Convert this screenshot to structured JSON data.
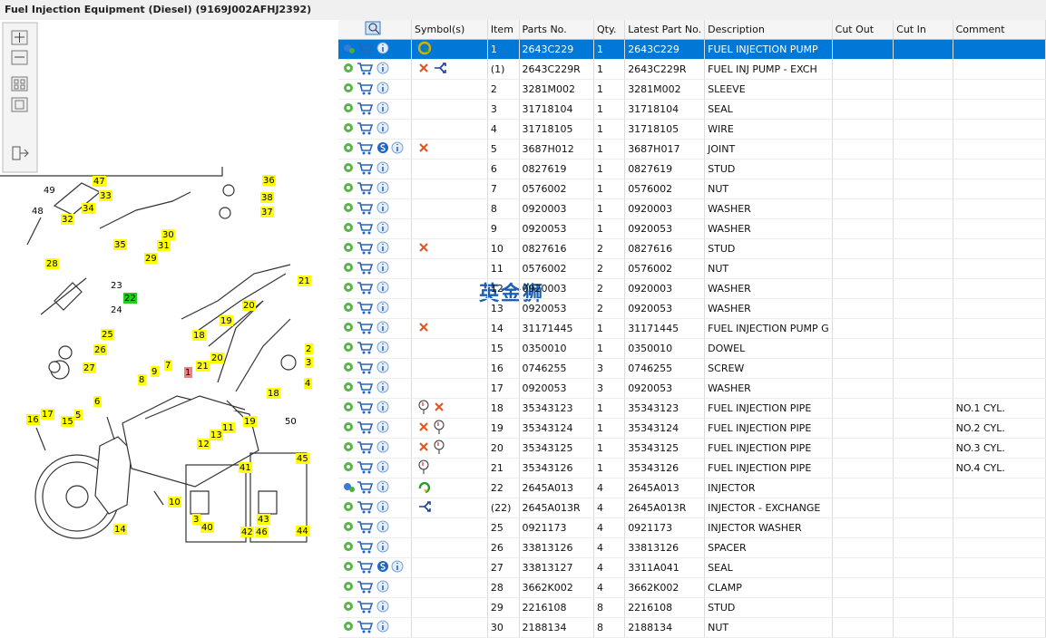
{
  "header": {
    "title": "Fuel Injection Equipment (Diesel) (9169J002AFHJ2392)"
  },
  "watermark": "英金狮",
  "diagram": {
    "callouts": [
      "47",
      "49",
      "33",
      "34",
      "32",
      "48",
      "36",
      "38",
      "37",
      "35",
      "30",
      "31",
      "28",
      "29",
      "23",
      "22",
      "24",
      "21",
      "20",
      "19",
      "18",
      "25",
      "26",
      "27",
      "2",
      "3",
      "4",
      "9",
      "8",
      "7",
      "1",
      "21",
      "20",
      "18",
      "6",
      "16",
      "17",
      "15",
      "5",
      "19",
      "50",
      "11",
      "13",
      "12",
      "41",
      "45",
      "10",
      "3",
      "40",
      "42",
      "43",
      "46",
      "44",
      "14"
    ]
  },
  "table": {
    "columns": [
      "Symbol(s)",
      "Item",
      "Parts No.",
      "Qty.",
      "Latest Part No.",
      "Description",
      "Cut Out",
      "Cut In",
      "Comment"
    ],
    "rows": [
      {
        "item": "1",
        "part_no": "2643C229",
        "qty": 1,
        "latest": "2643C229",
        "description": "FUEL INJECTION PUMP"
      },
      {
        "item": "(1)",
        "part_no": "2643C229R",
        "qty": 1,
        "latest": "2643C229R",
        "description": "FUEL INJ PUMP - EXCH"
      },
      {
        "item": "2",
        "part_no": "3281M002",
        "qty": 1,
        "latest": "3281M002",
        "description": "SLEEVE"
      },
      {
        "item": "3",
        "part_no": "31718104",
        "qty": 1,
        "latest": "31718104",
        "description": "SEAL"
      },
      {
        "item": "4",
        "part_no": "31718105",
        "qty": 1,
        "latest": "31718105",
        "description": "WIRE"
      },
      {
        "item": "5",
        "part_no": "3687H012",
        "qty": 1,
        "latest": "3687H017",
        "description": "JOINT"
      },
      {
        "item": "6",
        "part_no": "0827619",
        "qty": 1,
        "latest": "0827619",
        "description": "STUD"
      },
      {
        "item": "7",
        "part_no": "0576002",
        "qty": 1,
        "latest": "0576002",
        "description": "NUT"
      },
      {
        "item": "8",
        "part_no": "0920003",
        "qty": 1,
        "latest": "0920003",
        "description": "WASHER"
      },
      {
        "item": "9",
        "part_no": "0920053",
        "qty": 1,
        "latest": "0920053",
        "description": "WASHER"
      },
      {
        "item": "10",
        "part_no": "0827616",
        "qty": 2,
        "latest": "0827616",
        "description": "STUD"
      },
      {
        "item": "11",
        "part_no": "0576002",
        "qty": 2,
        "latest": "0576002",
        "description": "NUT"
      },
      {
        "item": "12",
        "part_no": "0920003",
        "qty": 2,
        "latest": "0920003",
        "description": "WASHER"
      },
      {
        "item": "13",
        "part_no": "0920053",
        "qty": 2,
        "latest": "0920053",
        "description": "WASHER"
      },
      {
        "item": "14",
        "part_no": "31171445",
        "qty": 1,
        "latest": "31171445",
        "description": "FUEL INJECTION PUMP G"
      },
      {
        "item": "15",
        "part_no": "0350010",
        "qty": 1,
        "latest": "0350010",
        "description": "DOWEL"
      },
      {
        "item": "16",
        "part_no": "0746255",
        "qty": 3,
        "latest": "0746255",
        "description": "SCREW"
      },
      {
        "item": "17",
        "part_no": "0920053",
        "qty": 3,
        "latest": "0920053",
        "description": "WASHER"
      },
      {
        "item": "18",
        "part_no": "35343123",
        "qty": 1,
        "latest": "35343123",
        "description": "FUEL INJECTION PIPE",
        "comment": "NO.1 CYL."
      },
      {
        "item": "19",
        "part_no": "35343124",
        "qty": 1,
        "latest": "35343124",
        "description": "FUEL INJECTION PIPE",
        "comment": "NO.2 CYL."
      },
      {
        "item": "20",
        "part_no": "35343125",
        "qty": 1,
        "latest": "35343125",
        "description": "FUEL INJECTION PIPE",
        "comment": "NO.3 CYL."
      },
      {
        "item": "21",
        "part_no": "35343126",
        "qty": 1,
        "latest": "35343126",
        "description": "FUEL INJECTION PIPE",
        "comment": "NO.4 CYL."
      },
      {
        "item": "22",
        "part_no": "2645A013",
        "qty": 4,
        "latest": "2645A013",
        "description": "INJECTOR"
      },
      {
        "item": "(22)",
        "part_no": "2645A013R",
        "qty": 4,
        "latest": "2645A013R",
        "description": "INJECTOR - EXCHANGE"
      },
      {
        "item": "25",
        "part_no": "0921173",
        "qty": 4,
        "latest": "0921173",
        "description": "INJECTOR WASHER"
      },
      {
        "item": "26",
        "part_no": "33813126",
        "qty": 4,
        "latest": "33813126",
        "description": "SPACER"
      },
      {
        "item": "27",
        "part_no": "33813127",
        "qty": 4,
        "latest": "3311A041",
        "description": "SEAL"
      },
      {
        "item": "28",
        "part_no": "3662K002",
        "qty": 4,
        "latest": "3662K002",
        "description": "CLAMP"
      },
      {
        "item": "29",
        "part_no": "2216108",
        "qty": 8,
        "latest": "2216108",
        "description": "STUD"
      },
      {
        "item": "30",
        "part_no": "2188134",
        "qty": 8,
        "latest": "2188134",
        "description": "NUT"
      }
    ]
  }
}
